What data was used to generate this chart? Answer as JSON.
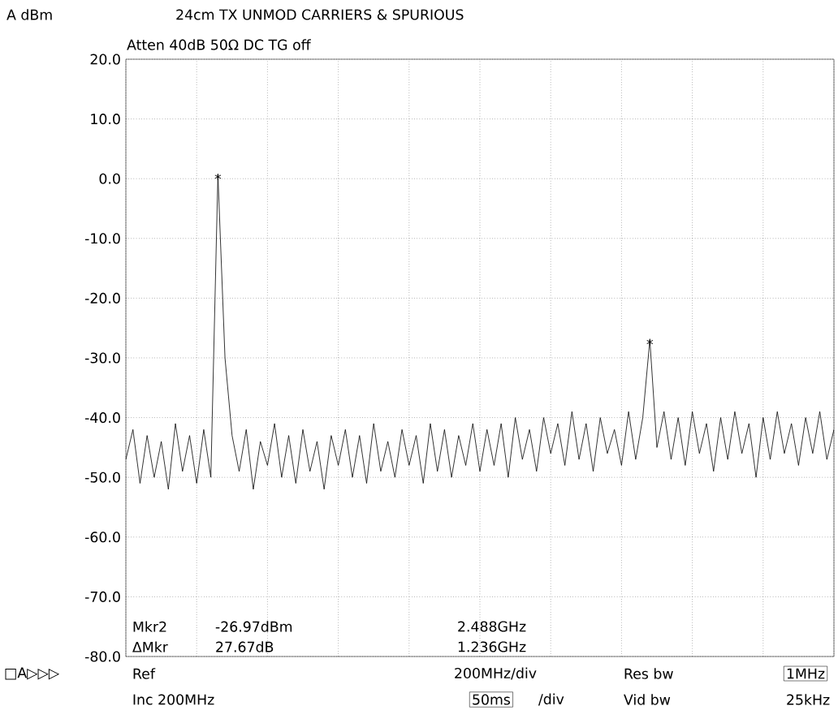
{
  "chart_data": {
    "type": "line",
    "title": "24cm TX UNMOD CARRIERS & SPURIOUS",
    "subtitle": "Atten 40dB  50Ω  DC TG off",
    "ylabel": "A dBm",
    "categories": [
      null,
      null,
      null,
      null,
      null,
      null,
      null,
      null,
      null,
      null,
      null,
      null,
      null,
      null,
      null,
      null,
      null,
      null,
      null,
      null,
      null,
      null,
      null,
      null,
      null,
      null,
      null,
      null,
      null,
      null,
      null,
      null,
      null,
      null,
      null,
      null,
      null,
      null,
      null,
      null,
      null,
      null,
      null,
      null,
      null,
      null,
      null,
      null,
      null,
      null,
      null,
      null,
      null,
      null,
      null,
      null,
      null,
      null,
      null,
      null,
      null,
      null,
      null,
      null,
      null,
      null,
      null,
      null,
      null,
      null,
      null,
      null,
      null,
      null,
      null,
      null,
      null,
      null,
      null,
      null,
      null,
      null,
      null,
      null,
      null,
      null,
      null,
      null,
      null,
      null,
      null,
      null,
      null,
      null,
      null,
      null,
      null,
      null,
      null,
      null,
      null
    ],
    "ylim": [
      -80,
      20
    ],
    "yticks": [
      {
        "value": -80,
        "label": "-80.0"
      },
      {
        "value": -70,
        "label": "-70.0"
      },
      {
        "value": -60,
        "label": "-60.0"
      },
      {
        "value": -50,
        "label": "-50.0"
      },
      {
        "value": -40,
        "label": "-40.0"
      },
      {
        "value": -30,
        "label": "-30.0"
      },
      {
        "value": -20,
        "label": "-20.0"
      },
      {
        "value": -10,
        "label": "-10.0"
      },
      {
        "value": 0,
        "label": "0.0"
      },
      {
        "value": 10,
        "label": "10.0"
      },
      {
        "value": 20,
        "label": "20.0"
      }
    ],
    "grid": true,
    "marker": "none",
    "series": [
      {
        "color": "#000000",
        "values": [
          -47,
          -42,
          -51,
          -43,
          -50,
          -44,
          -52,
          -41,
          -49,
          -43,
          -51,
          -42,
          -50,
          0.7,
          -30,
          -43,
          -49,
          -42,
          -52,
          -44,
          -48,
          -41,
          -50,
          -43,
          -51,
          -42,
          -49,
          -44,
          -52,
          -43,
          -48,
          -42,
          -50,
          -43,
          -51,
          -41,
          -49,
          -44,
          -50,
          -42,
          -48,
          -43,
          -51,
          -41,
          -49,
          -42,
          -50,
          -43,
          -48,
          -41,
          -49,
          -42,
          -48,
          -41,
          -50,
          -40,
          -47,
          -42,
          -49,
          -40,
          -46,
          -41,
          -48,
          -39,
          -47,
          -41,
          -49,
          -40,
          -46,
          -42,
          -48,
          -39,
          -47,
          -40,
          -26.97,
          -45,
          -39,
          -47,
          -40,
          -48,
          -39,
          -46,
          -41,
          -49,
          -40,
          -47,
          -39,
          -46,
          -41,
          -50,
          -40,
          -47,
          -39,
          -46,
          -41,
          -48,
          -40,
          -46,
          -39,
          -47,
          -42
        ],
        "value_labels": [
          null,
          null,
          null,
          null,
          null,
          null,
          null,
          null,
          null,
          null,
          null,
          null,
          null,
          "*",
          null,
          null,
          null,
          null,
          null,
          null,
          null,
          null,
          null,
          null,
          null,
          null,
          null,
          null,
          null,
          null,
          null,
          null,
          null,
          null,
          null,
          null,
          null,
          null,
          null,
          null,
          null,
          null,
          null,
          null,
          null,
          null,
          null,
          null,
          null,
          null,
          null,
          null,
          null,
          null,
          null,
          null,
          null,
          null,
          null,
          null,
          null,
          null,
          null,
          null,
          null,
          null,
          null,
          null,
          null,
          null,
          null,
          null,
          null,
          null,
          "*",
          null,
          null,
          null,
          null,
          null,
          null,
          null,
          null,
          null,
          null,
          null,
          null,
          null,
          null,
          null,
          null,
          null,
          null,
          null,
          null,
          null,
          null,
          null,
          null,
          null,
          null
        ]
      }
    ],
    "annotations": [
      "Mkr2",
      "-26.97dBm",
      "2.488GHz",
      "ΔMkr",
      "27.67dB",
      "1.236GHz",
      "□A▷▷▷",
      "Ref",
      "200MHz/div",
      "Res bw",
      "1MHz",
      "Inc 200MHz",
      "50ms",
      "/div",
      "Vid bw",
      "25kHz"
    ]
  }
}
